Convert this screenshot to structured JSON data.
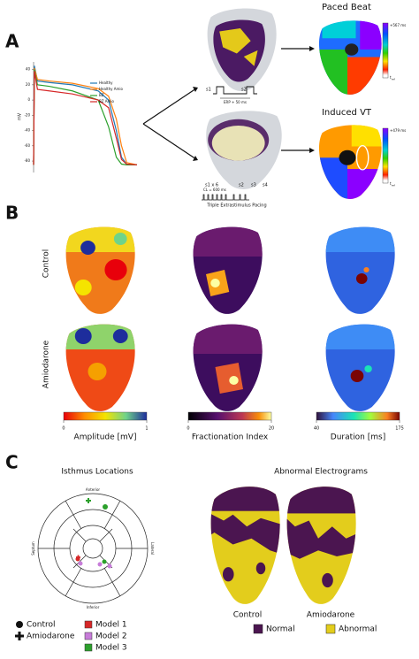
{
  "panel_labels": [
    "A",
    "B",
    "C"
  ],
  "chart_data": {
    "type": "line",
    "y_label": "mV",
    "x": [
      0,
      3,
      15,
      60,
      150,
      250,
      290,
      320,
      340,
      360,
      400
    ],
    "xlim": [
      0,
      400
    ],
    "ylim": [
      -95,
      50
    ],
    "yticks": [
      40,
      20,
      0,
      -20,
      -40,
      -60,
      -80
    ],
    "legend": "upper right",
    "series": [
      {
        "name": "Healthy",
        "color": "#1f77b4",
        "values": [
          -85,
          45,
          25,
          23,
          20,
          12,
          0,
          -40,
          -75,
          -84,
          -85
        ]
      },
      {
        "name": "Healthy Amio",
        "color": "#ff7f0e",
        "values": [
          -85,
          42,
          27,
          25,
          22,
          15,
          5,
          -25,
          -60,
          -82,
          -85
        ]
      },
      {
        "name": "BZ",
        "color": "#2ca02c",
        "values": [
          -85,
          40,
          20,
          18,
          12,
          0,
          -35,
          -75,
          -84,
          -85,
          -85
        ]
      },
      {
        "name": "BZ Amio",
        "color": "#d62728",
        "values": [
          -85,
          38,
          14,
          12,
          8,
          0,
          -10,
          -50,
          -78,
          -84,
          -85
        ]
      }
    ]
  },
  "pacing_top": {
    "s1": "s1",
    "s2": "s2",
    "interval": "ERP + 50 ms"
  },
  "pacing_bottom": {
    "s1": "s1 x 6",
    "cycle": "CL = 600 ms",
    "s2": "s2",
    "s3": "s3",
    "s4": "s4",
    "label": "Triple Extrastimulus Pacing"
  },
  "paced_beat": {
    "title": "Paced Beat",
    "max": "+567 ms",
    "min": "t",
    "min_sub": "ref"
  },
  "induced_vt": {
    "title": "Induced VT",
    "max": "+479 ms",
    "min": "t",
    "min_sub": "ref"
  },
  "row_labels": [
    "Control",
    "Amiodarone"
  ],
  "colorbars": [
    {
      "ticks": [
        0,
        1
      ],
      "label": "Amplitude [mV]"
    },
    {
      "ticks": [
        0,
        20
      ],
      "label": "Fractionation Index"
    },
    {
      "ticks": [
        40,
        175
      ],
      "label": "Duration [ms]"
    }
  ],
  "isthmus": {
    "title": "Isthmus Locations",
    "directions": {
      "top": "Anterior",
      "bottom": "Inferior",
      "left": "Septum",
      "right": "Lateral"
    },
    "legend_shapes": [
      "Control",
      "Amiodarone"
    ],
    "legend_models": [
      "Model 1",
      "Model 2",
      "Model 3"
    ]
  },
  "abnormal": {
    "title": "Abnormal Electrograms",
    "labels": [
      "Control",
      "Amiodarone"
    ],
    "legend": [
      "Normal",
      "Abnormal"
    ]
  }
}
